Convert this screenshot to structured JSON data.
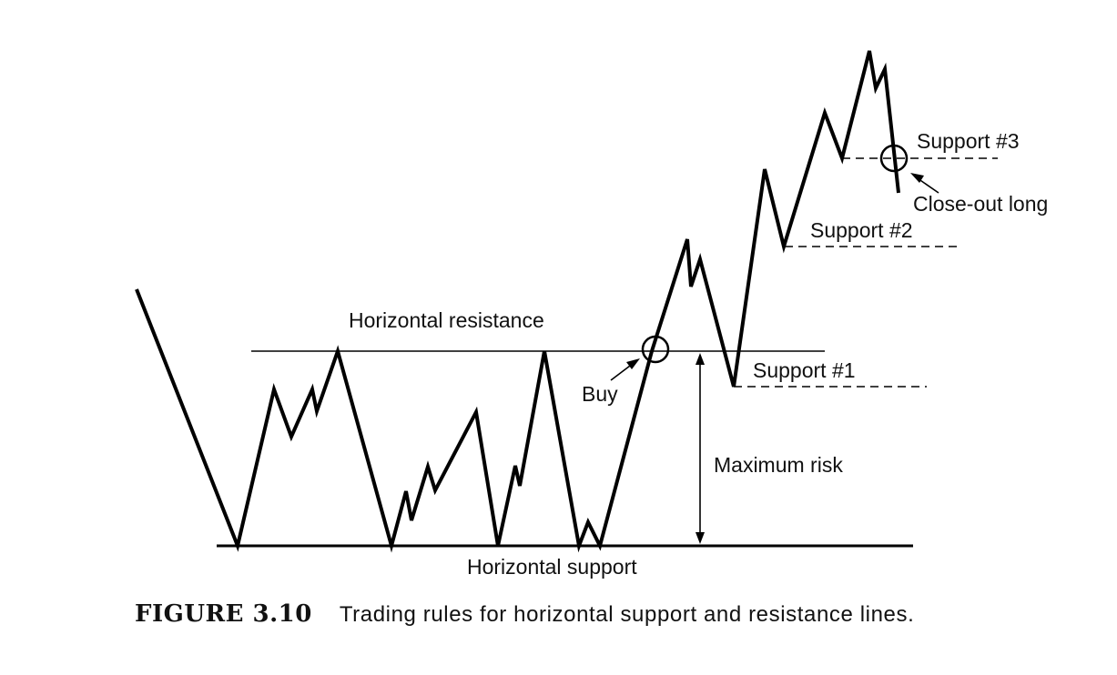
{
  "diagram": {
    "labels": {
      "horizontal_resistance": "Horizontal resistance",
      "horizontal_support": "Horizontal support",
      "buy": "Buy",
      "maximum_risk": "Maximum risk",
      "support_1": "Support #1",
      "support_2": "Support #2",
      "support_3": "Support #3",
      "close_out_long": "Close-out long"
    },
    "colors": {
      "ink": "#000000",
      "background": "#ffffff"
    }
  },
  "caption": {
    "number": "FIGURE 3.10",
    "text": "Trading rules for horizontal support and resistance lines."
  }
}
